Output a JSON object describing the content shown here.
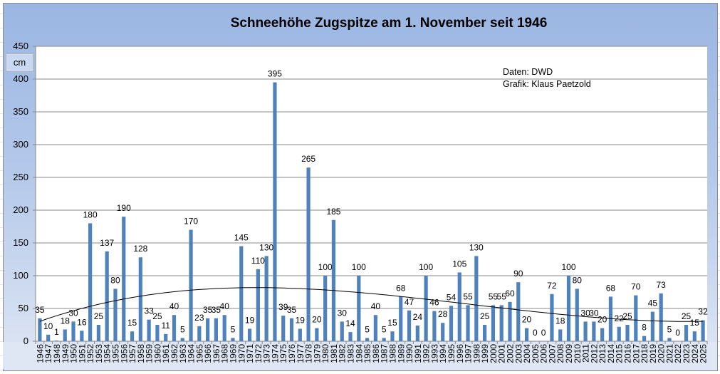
{
  "chart_data": {
    "type": "bar",
    "title": "Schneehöhe Zugspitze am 1. November seit 1946",
    "ylabel": "cm",
    "xlabel": "",
    "ylim": [
      0,
      450
    ],
    "yticks": [
      0,
      50,
      100,
      150,
      200,
      250,
      300,
      350,
      400,
      450
    ],
    "grid": true,
    "trendline": "polynomial",
    "annotations": [
      "Daten: DWD",
      "Grafik: Klaus Paetzold"
    ],
    "bar_color": "#4f81bd",
    "categories": [
      "1946",
      "1947",
      "1948",
      "1949",
      "1950",
      "1951",
      "1952",
      "1953",
      "1954",
      "1955",
      "1956",
      "1957",
      "1958",
      "1959",
      "1960",
      "1961",
      "1962",
      "1963",
      "1964",
      "1965",
      "1966",
      "1967",
      "1968",
      "1969",
      "1970",
      "1971",
      "1972",
      "1973",
      "1974",
      "1975",
      "1976",
      "1977",
      "1978",
      "1979",
      "1980",
      "1981",
      "1982",
      "1983",
      "1984",
      "1985",
      "1986",
      "1987",
      "1988",
      "1989",
      "1990",
      "1991",
      "1992",
      "1993",
      "1994",
      "1995",
      "1996",
      "1997",
      "1998",
      "1999",
      "2000",
      "2001",
      "2002",
      "2003",
      "2004",
      "2005",
      "2006",
      "2007",
      "2008",
      "2009",
      "2010",
      "2011",
      "2012",
      "2013",
      "2014",
      "2015",
      "2016",
      "2017",
      "2018",
      "2019",
      "2020",
      "2021",
      "2022",
      "2023",
      "2024",
      "2025"
    ],
    "values": [
      35,
      10,
      1,
      18,
      30,
      16,
      180,
      25,
      137,
      80,
      190,
      15,
      128,
      33,
      25,
      11,
      40,
      5,
      170,
      23,
      35,
      35,
      40,
      5,
      145,
      19,
      110,
      130,
      395,
      39,
      35,
      19,
      265,
      20,
      100,
      185,
      30,
      14,
      100,
      5,
      40,
      5,
      15,
      68,
      47,
      24,
      100,
      46,
      28,
      54,
      105,
      55,
      130,
      25,
      55,
      55,
      60,
      90,
      20,
      0,
      0,
      72,
      18,
      100,
      80,
      30,
      30,
      20,
      68,
      22,
      25,
      70,
      8,
      45,
      73,
      5,
      0,
      25,
      15,
      32
    ]
  }
}
